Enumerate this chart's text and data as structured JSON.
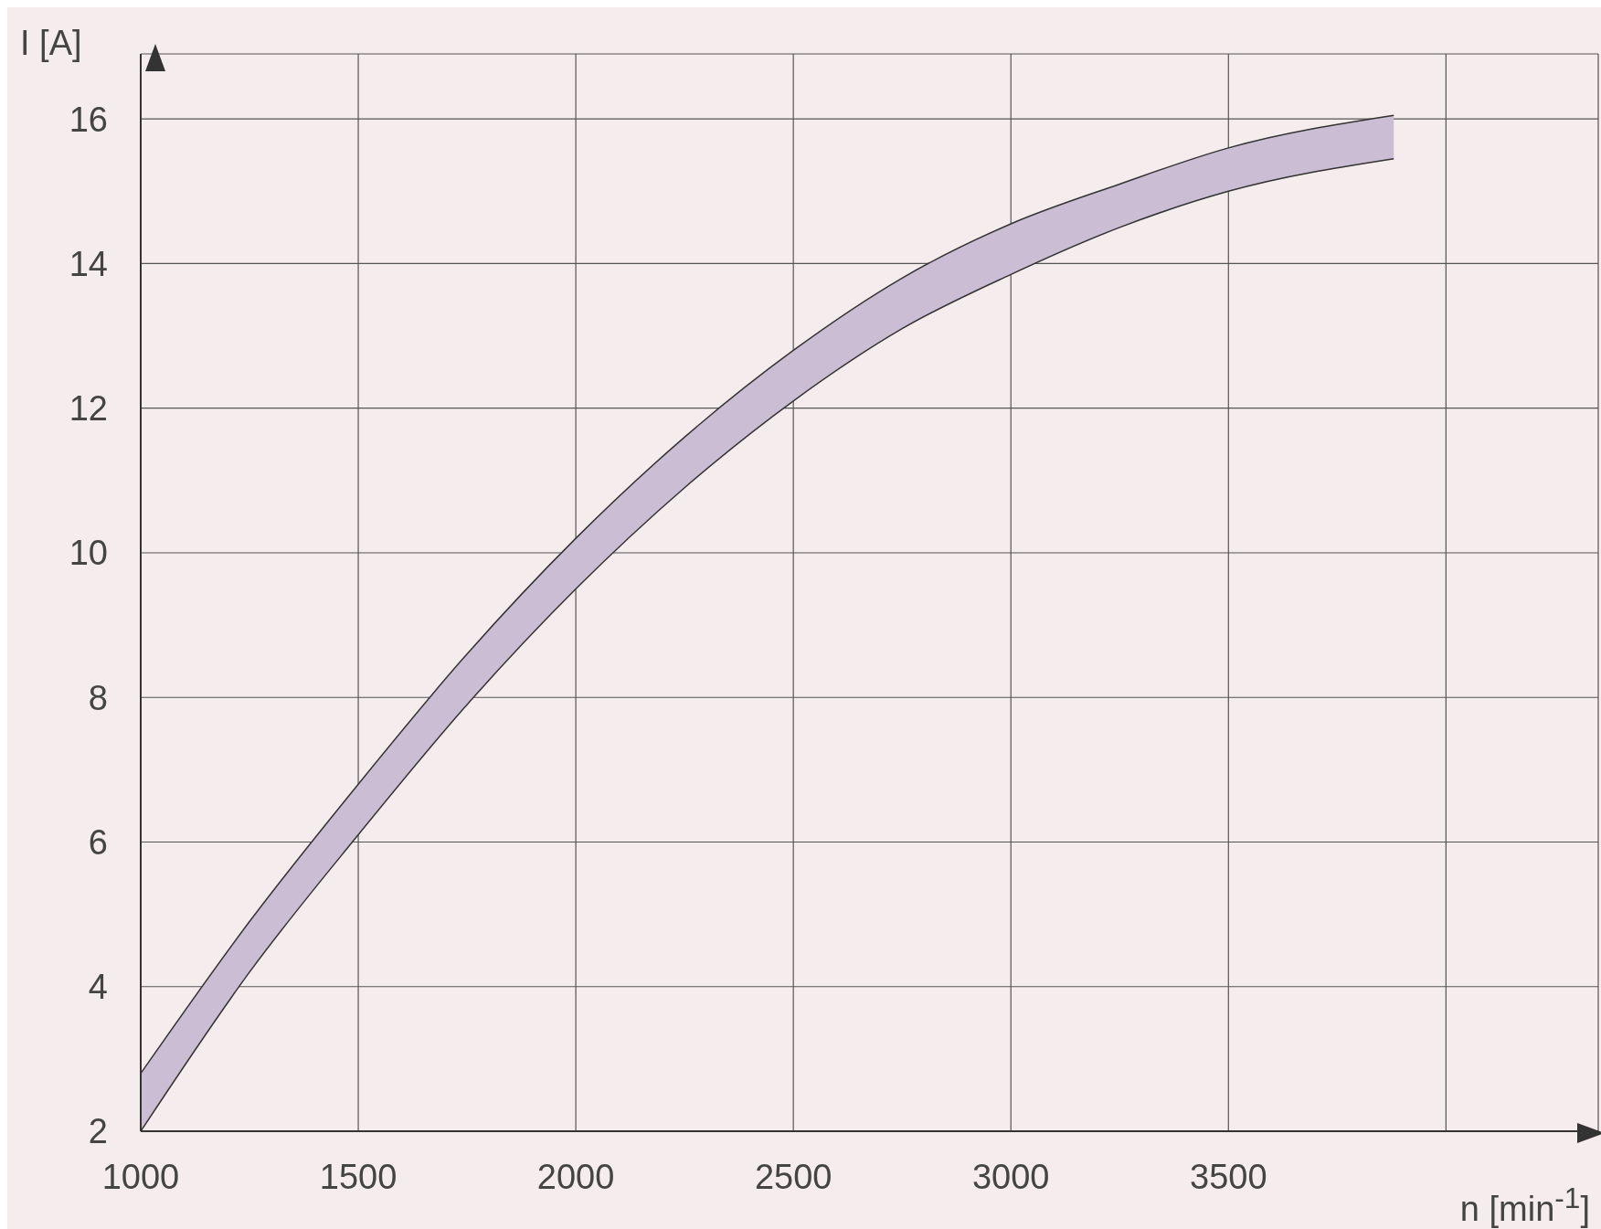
{
  "chart_data": {
    "type": "line",
    "xlabel": "n [min$^{-1}$]",
    "ylabel": "I [A]",
    "x": [
      1000,
      1250,
      1500,
      1750,
      2000,
      2250,
      2500,
      2750,
      3000,
      3250,
      3500,
      3880
    ],
    "series": [
      {
        "color": "#333333",
        "values": [
          2.0,
          4.2,
          6.1,
          7.9,
          9.5,
          10.9,
          12.1,
          13.1,
          13.85,
          14.5,
          15.0,
          15.45
        ],
        "lower": [
          2.0,
          4.2,
          6.1,
          7.9,
          9.5,
          10.9,
          12.1,
          13.1,
          13.85,
          14.5,
          15.0,
          15.45
        ],
        "upper": [
          2.8,
          4.9,
          6.8,
          8.6,
          10.2,
          11.6,
          12.8,
          13.8,
          14.55,
          15.1,
          15.6,
          16.05
        ]
      },
      {
        "color": "#333333",
        "values": [
          2.8,
          4.9,
          6.8,
          8.6,
          10.2,
          11.6,
          12.8,
          13.8,
          14.55,
          15.1,
          15.6,
          16.05
        ]
      }
    ],
    "xlim": [
      1000,
      4350
    ],
    "xticks": [
      1000,
      1500,
      2000,
      2500,
      3000,
      3500,
      {
        "value": 4000,
        "label": null
      }
    ],
    "ylim": [
      2,
      16.9
    ],
    "yticks": [
      2,
      4,
      6,
      8,
      10,
      12,
      14,
      16
    ],
    "grid": true
  }
}
